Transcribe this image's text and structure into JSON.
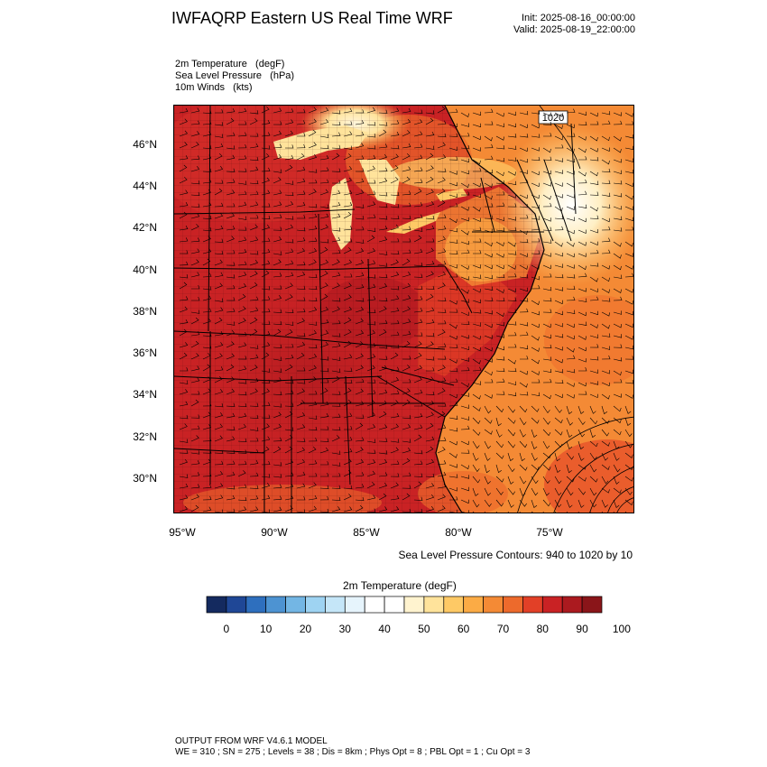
{
  "title": "IWFAQRP Eastern US Real Time WRF",
  "init_time": "Init: 2025-08-16_00:00:00",
  "valid_time": "Valid: 2025-08-19_22:00:00",
  "fields": [
    "2m Temperature   (degF)",
    "Sea Level Pressure   (hPa)",
    "10m Winds   (kts)"
  ],
  "contour_label": "1020",
  "lat_labels": [
    "46°N",
    "44°N",
    "42°N",
    "40°N",
    "38°N",
    "36°N",
    "34°N",
    "32°N",
    "30°N"
  ],
  "lon_labels": [
    "95°W",
    "90°W",
    "85°W",
    "80°W",
    "75°W"
  ],
  "contour_note": "Sea Level Pressure Contours: 940 to 1020 by 10",
  "colorbar": {
    "title": "2m Temperature  (degF)",
    "tick_labels": [
      "0",
      "10",
      "20",
      "30",
      "40",
      "50",
      "60",
      "70",
      "80",
      "90",
      "100"
    ],
    "colors": [
      "#142a5f",
      "#1f4796",
      "#2e6fbe",
      "#4d93d2",
      "#73b6e4",
      "#9ed3f2",
      "#c5e6f8",
      "#e6f4fc",
      "#ffffff",
      "#ffffff",
      "#fff3cf",
      "#ffe39b",
      "#fec965",
      "#fbab45",
      "#f48a35",
      "#ed6a2c",
      "#e24027",
      "#c92224",
      "#ab1a1f",
      "#8a1519"
    ]
  },
  "footer": [
    "OUTPUT FROM WRF V4.6.1 MODEL",
    "WE = 310 ; SN = 275 ; Levels = 38 ; Dis = 8km ; Phys Opt = 8 ; PBL Opt = 1 ; Cu Opt = 3"
  ]
}
